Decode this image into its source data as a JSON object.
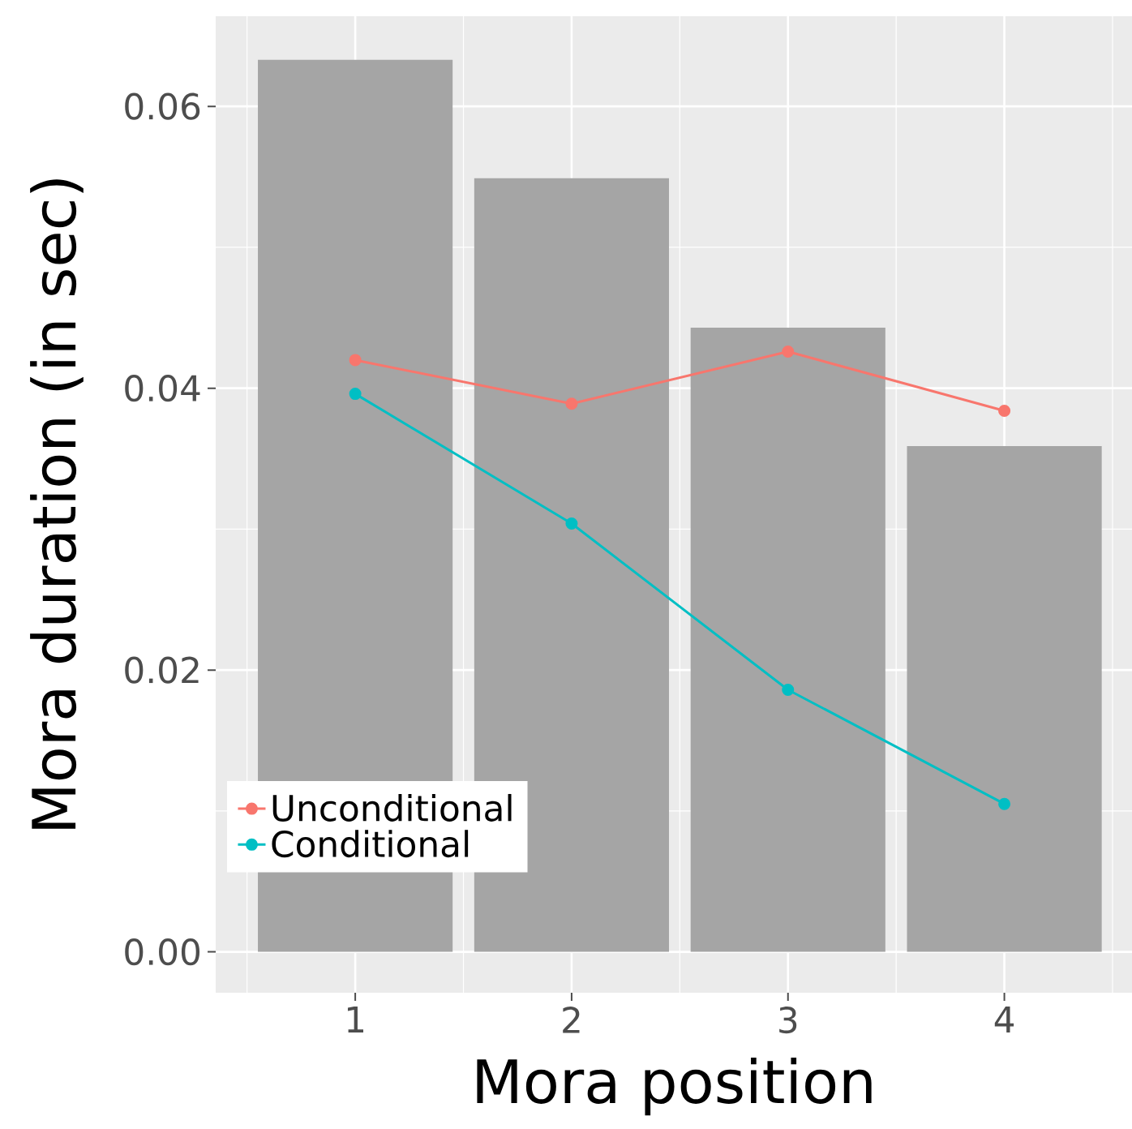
{
  "chart_data": {
    "type": "bar",
    "xlabel": "Mora position",
    "ylabel": "Mora duration (in sec)",
    "categories": [
      "1",
      "2",
      "3",
      "4"
    ],
    "series": [
      {
        "color": "#a5a5a5",
        "values": [
          0.0633,
          0.0549,
          0.0443,
          0.0359
        ]
      },
      {
        "type": "line",
        "name": "Unconditional",
        "color": "#f8766d",
        "values": [
          0.042,
          0.0389,
          0.0426,
          0.0384
        ]
      },
      {
        "type": "line",
        "name": "Conditional",
        "color": "#00bfc4",
        "values": [
          0.0396,
          0.0304,
          0.0186,
          0.0105
        ]
      }
    ],
    "ylim": [
      -0.0029,
      0.0664
    ],
    "yticks": [
      {
        "value": 0,
        "label": "0.00"
      },
      {
        "value": 0.02,
        "label": "0.02"
      },
      {
        "value": 0.04,
        "label": "0.04"
      },
      {
        "value": 0.06,
        "label": "0.06"
      }
    ],
    "grid": true,
    "legend": "bottom left",
    "marker": "circle",
    "line_style": "solid"
  }
}
